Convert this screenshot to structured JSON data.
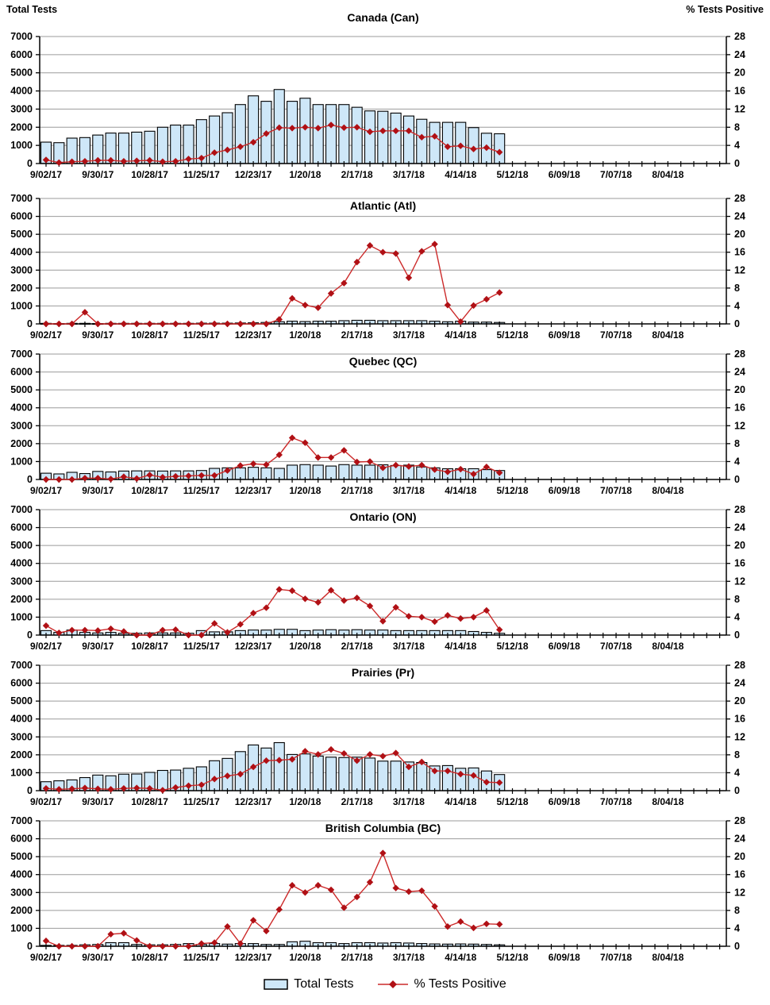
{
  "page_header": {
    "left_axis_title": "Total Tests",
    "right_axis_title": "% Tests Positive"
  },
  "x_axis": {
    "labels": [
      "9/02/17",
      "9/30/17",
      "10/28/17",
      "11/25/17",
      "12/23/17",
      "1/20/18",
      "2/17/18",
      "3/17/18",
      "4/14/18",
      "5/12/18",
      "6/09/18",
      "7/07/18",
      "8/04/18"
    ],
    "label_interval_weeks": 4,
    "total_weeks_shown": 53,
    "data_weeks": 36
  },
  "left_axis": {
    "title": "Total Tests",
    "min": 0,
    "max": 7000,
    "tick_step": 1000
  },
  "right_axis": {
    "title": "% Tests Positive",
    "min": 0,
    "max": 28,
    "tick_step": 4
  },
  "legend": {
    "bar_label": "Total Tests",
    "line_label": "% Tests Positive"
  },
  "colors": {
    "bar_fill": "#cee7f8",
    "bar_stroke": "#000000",
    "line": "#cc2a2a",
    "marker": "#b01015",
    "grid": "#9b9b9b",
    "axis": "#000000",
    "text": "#000000"
  },
  "chart_data": [
    {
      "title": "Canada (Can)",
      "type": "bar+line",
      "left_ylim": [
        0,
        7000
      ],
      "right_ylim": [
        0,
        28
      ],
      "series": [
        {
          "name": "Total Tests",
          "type": "bar",
          "axis": "left",
          "values": [
            1180,
            1150,
            1400,
            1430,
            1570,
            1680,
            1680,
            1730,
            1780,
            2000,
            2120,
            2120,
            2420,
            2620,
            2800,
            3250,
            3730,
            3430,
            4080,
            3430,
            3600,
            3250,
            3250,
            3250,
            3100,
            2900,
            2880,
            2780,
            2620,
            2440,
            2270,
            2270,
            2270,
            1980,
            1670,
            1640
          ]
        },
        {
          "name": "% Tests Positive",
          "type": "line",
          "axis": "right",
          "values": [
            0.8,
            0.2,
            0.4,
            0.5,
            0.7,
            0.7,
            0.5,
            0.6,
            0.7,
            0.4,
            0.5,
            1.0,
            1.2,
            2.4,
            3.0,
            3.7,
            4.7,
            6.6,
            7.9,
            7.8,
            8.0,
            7.8,
            8.5,
            7.9,
            8.0,
            7.0,
            7.2,
            7.2,
            7.2,
            5.8,
            6.0,
            3.7,
            3.9,
            3.2,
            3.5,
            2.5
          ]
        }
      ]
    },
    {
      "title": "Atlantic (Atl)",
      "type": "bar+line",
      "left_ylim": [
        0,
        7000
      ],
      "right_ylim": [
        0,
        28
      ],
      "series": [
        {
          "name": "Total Tests",
          "type": "bar",
          "axis": "left",
          "values": [
            30,
            20,
            30,
            30,
            20,
            30,
            30,
            30,
            30,
            30,
            30,
            30,
            40,
            40,
            40,
            50,
            60,
            80,
            120,
            150,
            130,
            150,
            150,
            180,
            200,
            200,
            180,
            180,
            180,
            180,
            150,
            120,
            150,
            100,
            100,
            80
          ]
        },
        {
          "name": "% Tests Positive",
          "type": "line",
          "axis": "right",
          "values": [
            0,
            0,
            0,
            2.6,
            0,
            0,
            0,
            0,
            0,
            0,
            0,
            0,
            0,
            0,
            0,
            0,
            0,
            0,
            1.0,
            5.7,
            4.2,
            3.6,
            6.8,
            9.1,
            13.8,
            17.5,
            16.0,
            15.7,
            10.3,
            16.2,
            17.8,
            4.2,
            0.5,
            4.1,
            5.5,
            7.0
          ]
        }
      ]
    },
    {
      "title": "Quebec (QC)",
      "type": "bar+line",
      "left_ylim": [
        0,
        7000
      ],
      "right_ylim": [
        0,
        28
      ],
      "series": [
        {
          "name": "Total Tests",
          "type": "bar",
          "axis": "left",
          "values": [
            350,
            310,
            400,
            330,
            450,
            420,
            470,
            480,
            480,
            470,
            480,
            480,
            500,
            620,
            650,
            650,
            680,
            650,
            620,
            800,
            830,
            800,
            750,
            830,
            800,
            800,
            820,
            780,
            800,
            700,
            650,
            600,
            600,
            600,
            550,
            500
          ]
        },
        {
          "name": "% Tests Positive",
          "type": "line",
          "axis": "right",
          "values": [
            0,
            0,
            0,
            0.3,
            0.3,
            0.1,
            0.6,
            0.2,
            1.0,
            0.5,
            0.7,
            0.8,
            0.9,
            0.9,
            2.0,
            3.1,
            3.5,
            3.3,
            5.5,
            9.3,
            8.2,
            4.9,
            4.9,
            6.5,
            3.9,
            4.0,
            2.6,
            3.2,
            2.9,
            3.2,
            2.2,
            1.7,
            2.3,
            1.2,
            2.8,
            1.5
          ]
        }
      ]
    },
    {
      "title": "Ontario (ON)",
      "type": "bar+line",
      "left_ylim": [
        0,
        7000
      ],
      "right_ylim": [
        0,
        28
      ],
      "series": [
        {
          "name": "Total Tests",
          "type": "bar",
          "axis": "left",
          "values": [
            250,
            150,
            280,
            150,
            120,
            150,
            100,
            100,
            120,
            120,
            120,
            100,
            250,
            180,
            180,
            250,
            280,
            280,
            320,
            320,
            250,
            280,
            300,
            280,
            300,
            280,
            280,
            250,
            250,
            250,
            250,
            250,
            250,
            200,
            150,
            100
          ]
        },
        {
          "name": "% Tests Positive",
          "type": "line",
          "axis": "right",
          "values": [
            2.1,
            0.5,
            1.1,
            1.1,
            1.0,
            1.4,
            0.8,
            0,
            0,
            1.1,
            1.2,
            0,
            0,
            2.6,
            0.6,
            2.4,
            4.9,
            6.1,
            10.2,
            9.9,
            8.1,
            7.3,
            10.0,
            7.7,
            8.3,
            6.5,
            3.1,
            6.2,
            4.2,
            4.0,
            3.0,
            4.4,
            3.7,
            4.0,
            5.5,
            1.2
          ]
        }
      ]
    },
    {
      "title": "Prairies (Pr)",
      "type": "bar+line",
      "left_ylim": [
        0,
        7000
      ],
      "right_ylim": [
        0,
        28
      ],
      "series": [
        {
          "name": "Total Tests",
          "type": "bar",
          "axis": "left",
          "values": [
            500,
            550,
            600,
            730,
            870,
            830,
            920,
            930,
            1020,
            1130,
            1150,
            1250,
            1330,
            1670,
            1800,
            2180,
            2550,
            2380,
            2680,
            2020,
            2050,
            1930,
            1870,
            1850,
            1870,
            1820,
            1650,
            1650,
            1600,
            1570,
            1380,
            1400,
            1250,
            1270,
            1100,
            900
          ]
        },
        {
          "name": "% Tests Positive",
          "type": "line",
          "axis": "right",
          "values": [
            0.5,
            0.3,
            0.4,
            0.6,
            0.4,
            0.3,
            0.5,
            0.6,
            0.5,
            0.1,
            0.7,
            1.1,
            1.3,
            2.6,
            3.3,
            3.7,
            5.3,
            6.7,
            6.8,
            7.0,
            8.8,
            8.1,
            9.2,
            8.3,
            6.7,
            8.1,
            7.7,
            8.4,
            5.3,
            6.4,
            4.4,
            4.4,
            3.7,
            3.4,
            1.9,
            1.8
          ]
        }
      ]
    },
    {
      "title": "British Columbia (BC)",
      "type": "bar+line",
      "left_ylim": [
        0,
        7000
      ],
      "right_ylim": [
        0,
        28
      ],
      "series": [
        {
          "name": "Total Tests",
          "type": "bar",
          "axis": "left",
          "values": [
            50,
            50,
            50,
            80,
            100,
            200,
            200,
            100,
            80,
            80,
            100,
            150,
            100,
            150,
            120,
            150,
            150,
            100,
            100,
            250,
            280,
            200,
            200,
            150,
            200,
            200,
            180,
            200,
            180,
            150,
            130,
            120,
            130,
            120,
            100,
            80
          ]
        },
        {
          "name": "% Tests Positive",
          "type": "line",
          "axis": "right",
          "values": [
            1.2,
            0,
            0,
            0,
            0,
            2.7,
            2.9,
            1.3,
            0,
            0,
            0,
            0,
            0.6,
            0.8,
            4.4,
            0.6,
            5.8,
            3.4,
            8.2,
            13.6,
            12.0,
            13.6,
            12.6,
            8.6,
            11.0,
            14.3,
            20.8,
            13.0,
            12.2,
            12.4,
            8.9,
            4.4,
            5.5,
            4.1,
            5.0,
            4.9
          ]
        }
      ]
    }
  ]
}
